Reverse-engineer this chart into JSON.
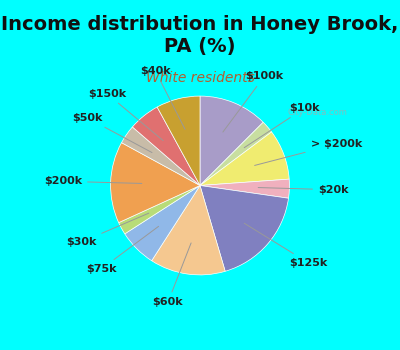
{
  "title": "Income distribution in Honey Brook,\nPA (%)",
  "subtitle": "White residents",
  "background_color": "#00FFFF",
  "chart_bg_color": "#e8f5ee",
  "title_fontsize": 14,
  "subtitle_fontsize": 10,
  "title_color": "#111111",
  "subtitle_color": "#b06030",
  "watermark": "City-Data.com",
  "labels": [
    "$100k",
    "$10k",
    "> $200k",
    "$20k",
    "$125k",
    "$60k",
    "$75k",
    "$30k",
    "$200k",
    "$50k",
    "$150k",
    "$40k"
  ],
  "sizes": [
    11,
    2,
    8,
    3,
    16,
    12,
    6,
    2,
    13,
    3,
    5,
    7
  ],
  "colors": [
    "#a89cc8",
    "#c8dea0",
    "#f0ec70",
    "#f0b0be",
    "#8080c0",
    "#f5c890",
    "#90b8e8",
    "#b8dc78",
    "#f0a050",
    "#c8bca8",
    "#e07070",
    "#c8a030"
  ],
  "label_fontsize": 8,
  "label_color": "#222222"
}
